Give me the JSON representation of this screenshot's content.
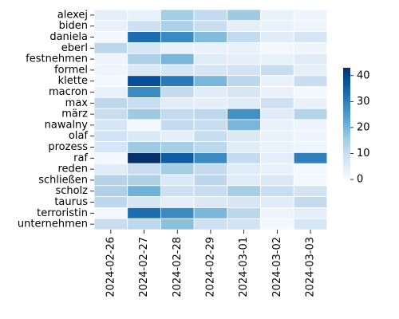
{
  "chart_data": {
    "type": "heatmap",
    "title": "",
    "xlabel": "",
    "ylabel": "",
    "x_categories": [
      "2024-02-26",
      "2024-02-27",
      "2024-02-28",
      "2024-02-29",
      "2024-03-01",
      "2024-03-02",
      "2024-03-03"
    ],
    "y_categories": [
      "alexej",
      "biden",
      "daniela",
      "eberl",
      "festnehmen",
      "formel",
      "klette",
      "macron",
      "max",
      "märz",
      "nawalny",
      "olaf",
      "prozess",
      "raf",
      "reden",
      "schließen",
      "scholz",
      "taurus",
      "terroristin",
      "unternehmen"
    ],
    "values": [
      [
        4,
        3,
        15,
        11,
        16,
        3,
        2
      ],
      [
        3,
        9,
        14,
        10,
        4,
        3,
        2
      ],
      [
        1,
        33,
        28,
        19,
        11,
        5,
        7
      ],
      [
        12,
        7,
        3,
        3,
        3,
        1,
        2
      ],
      [
        2,
        14,
        20,
        5,
        4,
        3,
        5
      ],
      [
        2,
        6,
        7,
        7,
        8,
        10,
        4
      ],
      [
        1,
        38,
        31,
        20,
        12,
        3,
        10
      ],
      [
        3,
        28,
        11,
        5,
        7,
        3,
        1
      ],
      [
        12,
        10,
        5,
        4,
        5,
        9,
        3
      ],
      [
        10,
        16,
        11,
        12,
        27,
        5,
        13
      ],
      [
        7,
        1,
        11,
        10,
        20,
        3,
        2
      ],
      [
        8,
        6,
        4,
        10,
        6,
        3,
        2
      ],
      [
        7,
        16,
        15,
        12,
        5,
        3,
        2
      ],
      [
        1,
        43,
        36,
        28,
        11,
        4,
        30
      ],
      [
        5,
        10,
        15,
        11,
        5,
        3,
        1
      ],
      [
        13,
        14,
        6,
        12,
        5,
        6,
        1
      ],
      [
        14,
        21,
        9,
        10,
        15,
        10,
        8
      ],
      [
        12,
        7,
        4,
        6,
        7,
        5,
        11
      ],
      [
        1,
        33,
        28,
        20,
        12,
        2,
        4
      ],
      [
        10,
        12,
        18,
        9,
        8,
        1,
        7
      ]
    ],
    "colorbar": {
      "min": 0,
      "max": 43,
      "ticks": [
        0,
        10,
        20,
        30,
        40
      ]
    },
    "colormap": "Blues",
    "colors": {
      "low": "#f7fbff",
      "high": "#08306b",
      "grid": "#ffffff"
    }
  }
}
